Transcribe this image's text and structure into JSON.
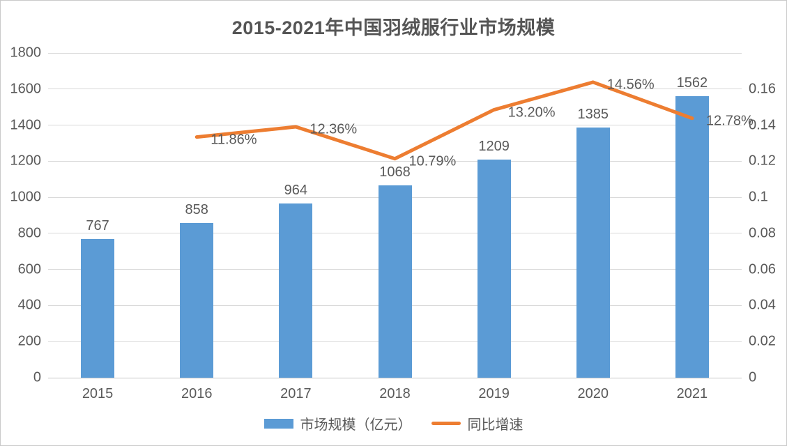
{
  "chart_data": {
    "type": "bar+line",
    "title": "2015-2021年中国羽绒服行业市场规模",
    "categories": [
      "2015",
      "2016",
      "2017",
      "2018",
      "2019",
      "2020",
      "2021"
    ],
    "series": [
      {
        "name": "市场规模（亿元）",
        "type": "bar",
        "axis": "left",
        "color": "#5B9BD5",
        "values": [
          767,
          858,
          964,
          1068,
          1209,
          1385,
          1562
        ],
        "labels": [
          "767",
          "858",
          "964",
          "1068",
          "1209",
          "1385",
          "1562"
        ]
      },
      {
        "name": "同比增速",
        "type": "line",
        "axis": "right",
        "color": "#ED7D31",
        "values": [
          null,
          0.1186,
          0.1236,
          0.1079,
          0.132,
          0.1456,
          0.1278
        ],
        "labels": [
          null,
          "11.86%",
          "12.36%",
          "10.79%",
          "13.20%",
          "14.56%",
          "12.78%"
        ]
      }
    ],
    "left_axis": {
      "min": 0,
      "max": 1800,
      "step": 200,
      "ticks": [
        "0",
        "200",
        "400",
        "600",
        "800",
        "1000",
        "1200",
        "1400",
        "1600",
        "1800"
      ]
    },
    "right_axis": {
      "min": 0,
      "max": 0.16,
      "step": 0.02,
      "ticks": [
        "0",
        "0.02",
        "0.04",
        "0.06",
        "0.08",
        "0.1",
        "0.12",
        "0.14",
        "0.16"
      ]
    },
    "grid": true,
    "legend_position": "bottom"
  },
  "legend": {
    "bar_label": "市场规模（亿元）",
    "line_label": "同比增速"
  },
  "colors": {
    "bar": "#5B9BD5",
    "line": "#ED7D31",
    "text": "#595959",
    "title_text": "#555555",
    "grid": "#D9D9D9",
    "border": "#C9C9C9",
    "background": "#FFFFFF"
  }
}
